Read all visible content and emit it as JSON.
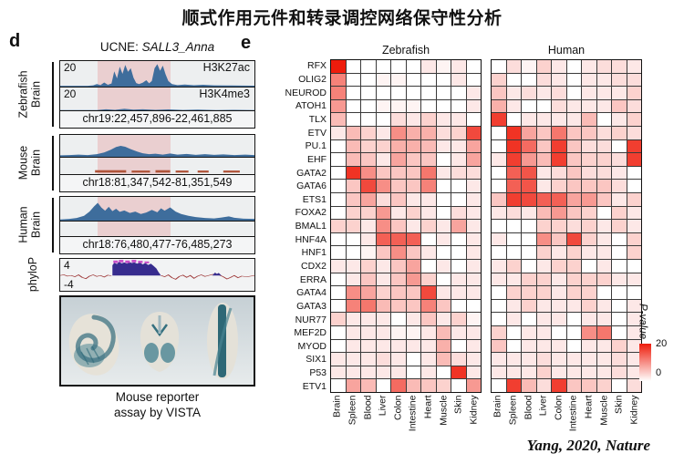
{
  "title": "顺式作用元件和转录调控网络保守性分析",
  "citation": "Yang, 2020, Nature",
  "panel_d": {
    "label": "d",
    "subtitle": {
      "prefix": "UCNE: ",
      "gene": "SALL3_Anna"
    },
    "groups": [
      {
        "species": "Zebrafish",
        "tissue": "Brain",
        "tracks": [
          {
            "scale": "20",
            "label": "H3K27ac"
          },
          {
            "scale": "20",
            "label": "H3K4me3"
          }
        ],
        "coords": "chr19:22,457,896-22,461,885"
      },
      {
        "species": "Mouse",
        "tissue": "Brain",
        "coords": "chr18:81,347,542-81,351,549"
      },
      {
        "species": "Human",
        "tissue": "Brain",
        "coords": "chr18:76,480,477-76,485,273"
      }
    ],
    "phylop": {
      "label": "phyloP",
      "max": "4",
      "min": "-4"
    },
    "caption": {
      "line1": "Mouse reporter",
      "line2": "assay by VISTA"
    }
  },
  "panel_e": {
    "label": "e",
    "legend": {
      "label": "P-value",
      "max": "20",
      "min": "0"
    }
  },
  "colors": {
    "heat_max": "#ee1c0c",
    "track_peak": "#3e6d9c",
    "phylop_positive": "#372c8e",
    "phylop_cap": "#c94fc9",
    "phylop_noise": "#9c3333"
  },
  "chart_data": [
    {
      "type": "heatmap",
      "title": "Zebrafish",
      "rows": [
        "RFX",
        "OLIG2",
        "NEUROD",
        "ATOH1",
        "TLX",
        "ETV",
        "PU.1",
        "EHF",
        "GATA2",
        "GATA6",
        "ETS1",
        "FOXA2",
        "BMAL1",
        "HNF4A",
        "HNF1",
        "CDX2",
        "ERRA",
        "GATA4",
        "GATA3",
        "NUR77",
        "MEF2D",
        "MYOD",
        "SIX1",
        "P53",
        "ETV1"
      ],
      "columns": [
        "Brain",
        "Spleen",
        "Blood",
        "Liver",
        "Colon",
        "Intestine",
        "Heart",
        "Muscle",
        "Skin",
        "Kidney"
      ],
      "values": [
        [
          20,
          0,
          0,
          0,
          0,
          0,
          2,
          1,
          2,
          0
        ],
        [
          11,
          0,
          0,
          1,
          1,
          0,
          0,
          0,
          2,
          0
        ],
        [
          11,
          0,
          0,
          0,
          0,
          0,
          0,
          0,
          0,
          2
        ],
        [
          9,
          0,
          0,
          1,
          1,
          1,
          0,
          0,
          0,
          2
        ],
        [
          6,
          0,
          0,
          0,
          3,
          2,
          4,
          2,
          2,
          0
        ],
        [
          2,
          6,
          4,
          2,
          10,
          7,
          7,
          3,
          4,
          16
        ],
        [
          0,
          6,
          4,
          4,
          7,
          7,
          6,
          2,
          2,
          8
        ],
        [
          0,
          6,
          5,
          2,
          8,
          5,
          5,
          0,
          2,
          8
        ],
        [
          0,
          18,
          10,
          5,
          5,
          5,
          12,
          2,
          3,
          3
        ],
        [
          0,
          5,
          16,
          10,
          5,
          5,
          11,
          0,
          0,
          2
        ],
        [
          0,
          5,
          8,
          3,
          5,
          2,
          2,
          0,
          0,
          2
        ],
        [
          0,
          4,
          4,
          9,
          2,
          4,
          2,
          0,
          3,
          2
        ],
        [
          4,
          4,
          2,
          10,
          5,
          2,
          4,
          2,
          8,
          2
        ],
        [
          0,
          0,
          2,
          14,
          14,
          14,
          0,
          2,
          0,
          2
        ],
        [
          0,
          0,
          1,
          5,
          10,
          5,
          2,
          0,
          0,
          2
        ],
        [
          2,
          2,
          4,
          2,
          5,
          8,
          0,
          2,
          0,
          2
        ],
        [
          0,
          2,
          5,
          2,
          5,
          9,
          4,
          0,
          2,
          2
        ],
        [
          0,
          10,
          8,
          4,
          5,
          5,
          16,
          2,
          2,
          2
        ],
        [
          0,
          11,
          12,
          6,
          5,
          5,
          11,
          5,
          0,
          0
        ],
        [
          4,
          2,
          2,
          2,
          0,
          2,
          5,
          2,
          4,
          1
        ],
        [
          0,
          2,
          2,
          2,
          1,
          1,
          2,
          6,
          2,
          2
        ],
        [
          0,
          2,
          2,
          2,
          2,
          2,
          2,
          7,
          0,
          2
        ],
        [
          2,
          2,
          2,
          3,
          2,
          0,
          2,
          6,
          3,
          2
        ],
        [
          2,
          2,
          2,
          2,
          2,
          0,
          2,
          0,
          18,
          2
        ],
        [
          0,
          8,
          6,
          0,
          13,
          6,
          5,
          4,
          0,
          9
        ]
      ],
      "scale": {
        "label": "P-value",
        "min": 0,
        "max": 20,
        "min_color": "#ffffff",
        "max_color": "#ee1c0c"
      },
      "legend_position": "right"
    },
    {
      "type": "heatmap",
      "title": "Human",
      "rows": [
        "RFX",
        "OLIG2",
        "NEUROD",
        "ATOH1",
        "TLX",
        "ETV",
        "PU.1",
        "EHF",
        "GATA2",
        "GATA6",
        "ETS1",
        "FOXA2",
        "BMAL1",
        "HNF4A",
        "HNF1",
        "CDX2",
        "ERRA",
        "GATA4",
        "GATA3",
        "NUR77",
        "MEF2D",
        "MYOD",
        "SIX1",
        "P53",
        "ETV1"
      ],
      "columns": [
        "Brain",
        "Spleen",
        "Blood",
        "Liver",
        "Colon",
        "Intestine",
        "Heart",
        "Muscle",
        "Skin",
        "Kidney"
      ],
      "values": [
        [
          0,
          3,
          1,
          4,
          2,
          0,
          2,
          3,
          3,
          2
        ],
        [
          4,
          0,
          0,
          3,
          2,
          0,
          2,
          2,
          3,
          3
        ],
        [
          5,
          2,
          3,
          2,
          3,
          0,
          2,
          2,
          2,
          4
        ],
        [
          7,
          2,
          0,
          0,
          3,
          2,
          2,
          2,
          5,
          3
        ],
        [
          17,
          0,
          2,
          2,
          2,
          2,
          6,
          0,
          2,
          4
        ],
        [
          0,
          18,
          8,
          5,
          12,
          5,
          5,
          3,
          4,
          3
        ],
        [
          0,
          18,
          13,
          5,
          17,
          5,
          3,
          3,
          0,
          17
        ],
        [
          2,
          17,
          9,
          6,
          17,
          5,
          4,
          4,
          3,
          17
        ],
        [
          0,
          14,
          15,
          2,
          3,
          5,
          3,
          3,
          2,
          0
        ],
        [
          0,
          14,
          15,
          2,
          4,
          5,
          5,
          5,
          3,
          0
        ],
        [
          5,
          17,
          16,
          14,
          14,
          8,
          9,
          5,
          2,
          4
        ],
        [
          2,
          3,
          2,
          6,
          9,
          5,
          4,
          0,
          4,
          2
        ],
        [
          0,
          0,
          0,
          4,
          4,
          3,
          4,
          2,
          4,
          2
        ],
        [
          2,
          0,
          0,
          10,
          5,
          16,
          4,
          2,
          0,
          4
        ],
        [
          0,
          0,
          0,
          4,
          2,
          4,
          2,
          2,
          0,
          4
        ],
        [
          2,
          4,
          0,
          2,
          4,
          4,
          0,
          2,
          0,
          0
        ],
        [
          2,
          2,
          4,
          4,
          2,
          4,
          4,
          4,
          2,
          2
        ],
        [
          0,
          4,
          4,
          4,
          2,
          4,
          4,
          0,
          0,
          0
        ],
        [
          0,
          2,
          4,
          2,
          2,
          2,
          4,
          2,
          0,
          2
        ],
        [
          0,
          2,
          0,
          2,
          2,
          0,
          2,
          2,
          0,
          2
        ],
        [
          4,
          0,
          2,
          2,
          0,
          0,
          10,
          12,
          0,
          2
        ],
        [
          5,
          0,
          2,
          2,
          2,
          0,
          2,
          2,
          4,
          2
        ],
        [
          2,
          2,
          2,
          3,
          2,
          2,
          2,
          2,
          3,
          2
        ],
        [
          2,
          2,
          2,
          4,
          2,
          2,
          2,
          2,
          3,
          2
        ],
        [
          0,
          17,
          6,
          3,
          17,
          5,
          5,
          4,
          0,
          3
        ]
      ],
      "scale": {
        "label": "P-value",
        "min": 0,
        "max": 20,
        "min_color": "#ffffff",
        "max_color": "#ee1c0c"
      },
      "legend_position": "right"
    }
  ]
}
